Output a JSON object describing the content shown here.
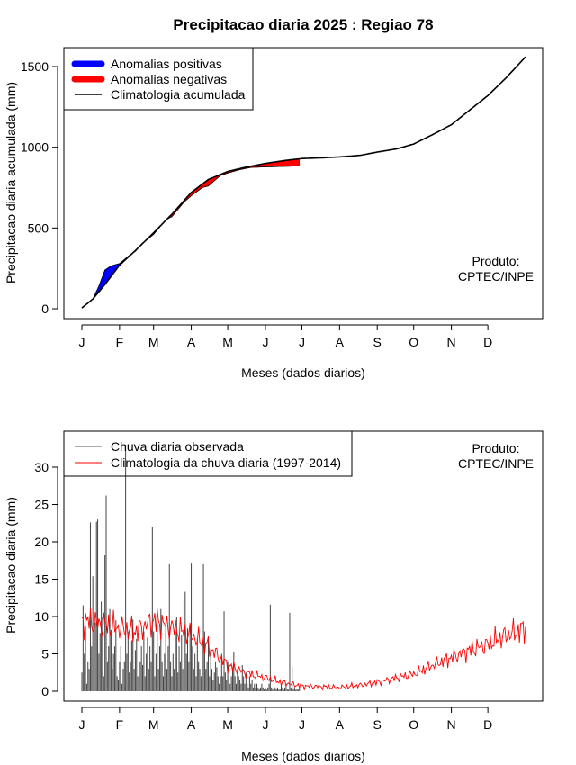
{
  "chart_data": [
    {
      "type": "area",
      "title": "Precipitacao diaria 2025 : Regiao 78",
      "xlabel": "Meses (dados diarios)",
      "ylabel": "Precipitacao diaria acumulada (mm)",
      "x_tick_labels": [
        "J",
        "F",
        "M",
        "A",
        "M",
        "J",
        "J",
        "A",
        "S",
        "O",
        "N",
        "D"
      ],
      "x_tick_days": [
        1,
        32,
        60,
        91,
        121,
        152,
        182,
        213,
        244,
        274,
        305,
        335
      ],
      "xlim": [
        1,
        366
      ],
      "ylim": [
        0,
        1550
      ],
      "y_ticks": [
        0,
        500,
        1000,
        1500
      ],
      "legend_position": "top-left",
      "legend": [
        {
          "label": "Anomalias positivas",
          "color": "#0000ff",
          "style": "thick"
        },
        {
          "label": "Anomalias negativas",
          "color": "#ff0000",
          "style": "thick"
        },
        {
          "label": "Climatologia acumulada",
          "color": "#000000",
          "style": "line"
        }
      ],
      "annotation": [
        "Produto:",
        "CPTEC/INPE"
      ],
      "climatology_cumulative": {
        "day": [
          1,
          10,
          20,
          32,
          45,
          60,
          75,
          91,
          105,
          121,
          135,
          152,
          170,
          182,
          200,
          213,
          230,
          244,
          260,
          274,
          290,
          305,
          320,
          335,
          350,
          366
        ],
        "value": [
          5,
          60,
          150,
          270,
          360,
          470,
          585,
          720,
          800,
          850,
          875,
          900,
          920,
          930,
          935,
          940,
          950,
          970,
          990,
          1020,
          1080,
          1140,
          1230,
          1320,
          1430,
          1560
        ]
      },
      "observed_cumulative": {
        "day": [
          1,
          10,
          15,
          20,
          25,
          32,
          40,
          45,
          50,
          60,
          70,
          75,
          85,
          91,
          100,
          105,
          115,
          121,
          130,
          140,
          150,
          160,
          170,
          180
        ],
        "value": [
          5,
          60,
          140,
          240,
          265,
          280,
          330,
          355,
          400,
          460,
          550,
          570,
          660,
          700,
          750,
          760,
          825,
          840,
          860,
          875,
          878,
          880,
          882,
          885
        ]
      }
    },
    {
      "type": "bar",
      "xlabel": "Meses (dados diarios)",
      "ylabel": "Precipitacao diaria (mm)",
      "x_tick_labels": [
        "J",
        "F",
        "M",
        "A",
        "M",
        "J",
        "J",
        "A",
        "S",
        "O",
        "N",
        "D"
      ],
      "x_tick_days": [
        1,
        32,
        60,
        91,
        121,
        152,
        182,
        213,
        244,
        274,
        305,
        335
      ],
      "xlim": [
        1,
        366
      ],
      "ylim": [
        0,
        33
      ],
      "y_ticks": [
        0,
        5,
        10,
        15,
        20,
        25,
        30
      ],
      "legend_position": "top-left",
      "legend": [
        {
          "label": "Chuva diaria observada",
          "color": "#555555",
          "style": "line"
        },
        {
          "label": "Climatologia da chuva diaria (1997-2014)",
          "color": "#ff0000",
          "style": "line"
        }
      ],
      "annotation": [
        "Produto:",
        "CPTEC/INPE"
      ],
      "observed_daily": {
        "day": [
          1,
          2,
          3,
          4,
          5,
          6,
          7,
          8,
          9,
          10,
          11,
          12,
          13,
          14,
          15,
          16,
          17,
          18,
          19,
          20,
          21,
          22,
          23,
          24,
          25,
          26,
          27,
          28,
          29,
          30,
          31,
          32,
          33,
          34,
          35,
          36,
          37,
          38,
          39,
          40,
          41,
          42,
          43,
          44,
          45,
          46,
          47,
          48,
          49,
          50,
          51,
          52,
          53,
          54,
          55,
          56,
          57,
          58,
          59,
          60,
          61,
          62,
          63,
          64,
          65,
          66,
          67,
          68,
          69,
          70,
          71,
          72,
          73,
          74,
          75,
          76,
          77,
          78,
          79,
          80,
          81,
          82,
          83,
          84,
          85,
          86,
          87,
          88,
          89,
          90,
          91,
          92,
          93,
          94,
          95,
          96,
          97,
          98,
          99,
          100,
          101,
          102,
          103,
          104,
          105,
          106,
          107,
          108,
          109,
          110,
          111,
          112,
          113,
          114,
          115,
          116,
          117,
          118,
          119,
          120,
          121,
          122,
          123,
          124,
          125,
          126,
          127,
          128,
          129,
          130,
          131,
          132,
          133,
          134,
          135,
          136,
          137,
          138,
          139,
          140,
          141,
          142,
          143,
          144,
          145,
          146,
          147,
          148,
          149,
          150,
          151,
          152,
          153,
          154,
          155,
          156,
          157,
          158,
          159,
          160,
          161,
          162,
          163,
          164,
          165,
          166,
          167,
          168,
          169,
          170,
          171,
          172,
          173,
          174,
          175,
          176,
          177,
          178,
          179,
          180
        ],
        "value": [
          2.5,
          11.5,
          5.0,
          8.8,
          1.0,
          4.0,
          3.0,
          22.6,
          6.0,
          15.4,
          2.5,
          9.2,
          22.7,
          23.0,
          5.0,
          7.8,
          12.0,
          10.0,
          2.0,
          18.2,
          26.2,
          4.0,
          6.0,
          11.0,
          8.2,
          3.0,
          5.0,
          6.0,
          9.5,
          2.0,
          1.5,
          4.0,
          6.0,
          1.0,
          3.0,
          4.0,
          33.0,
          5.0,
          8.0,
          2.5,
          4.0,
          6.8,
          9.6,
          3.0,
          5.5,
          7.0,
          2.0,
          11.0,
          4.0,
          6.0,
          3.5,
          8.0,
          2.0,
          5.0,
          7.2,
          3.0,
          6.0,
          4.0,
          22.0,
          8.0,
          2.0,
          5.0,
          9.0,
          3.0,
          6.0,
          11.0,
          4.0,
          2.0,
          5.0,
          8.5,
          3.0,
          6.0,
          17.0,
          4.0,
          2.0,
          5.0,
          3.0,
          8.0,
          10.0,
          2.5,
          6.0,
          4.0,
          7.5,
          3.0,
          12.4,
          13.3,
          5.0,
          8.4,
          4.0,
          9.0,
          17.1,
          6.0,
          3.0,
          5.0,
          2.0,
          7.0,
          4.0,
          3.0,
          2.0,
          6.0,
          17.0,
          8.0,
          3.0,
          4.0,
          6.8,
          2.0,
          5.0,
          3.0,
          1.5,
          2.5,
          4.0,
          3.2,
          2.0,
          1.0,
          2.0,
          5.0,
          2.0,
          10.7,
          2.5,
          1.5,
          4.0,
          2.0,
          1.0,
          2.0,
          3.0,
          5.3,
          2.0,
          1.0,
          3.0,
          2.0,
          1.5,
          1.0,
          3.5,
          2.0,
          1.0,
          2.5,
          1.0,
          0.5,
          2.0,
          1.0,
          1.5,
          0.5,
          1.0,
          0.5,
          1.0,
          0.5,
          0.3,
          0.5,
          1.0,
          0.5,
          0.3,
          0.5,
          0.2,
          0.5,
          1.0,
          11.6,
          0.5,
          0.3,
          0.2,
          0.5,
          0.3,
          0.5,
          0.2,
          0.3,
          1.0,
          0.5,
          0.2,
          0.5,
          1.0,
          0.3,
          0.2,
          10.5,
          0.5,
          3.3,
          0.3,
          0.5,
          0.2,
          0.3,
          0.2,
          0.5
        ],
        "note_range": "observations end near day 180"
      },
      "climatology_daily": {
        "day": [
          1,
          15,
          32,
          45,
          60,
          75,
          91,
          105,
          121,
          135,
          152,
          165,
          182,
          200,
          213,
          230,
          244,
          260,
          274,
          290,
          305,
          320,
          335,
          350,
          360,
          366
        ],
        "value": [
          9.5,
          9.0,
          8.5,
          8.0,
          9.5,
          8.5,
          7.5,
          6.0,
          3.5,
          2.5,
          1.8,
          1.2,
          0.7,
          0.6,
          0.5,
          0.8,
          1.2,
          1.8,
          2.3,
          3.5,
          4.5,
          5.5,
          6.3,
          7.5,
          8.0,
          8.5
        ]
      }
    }
  ]
}
